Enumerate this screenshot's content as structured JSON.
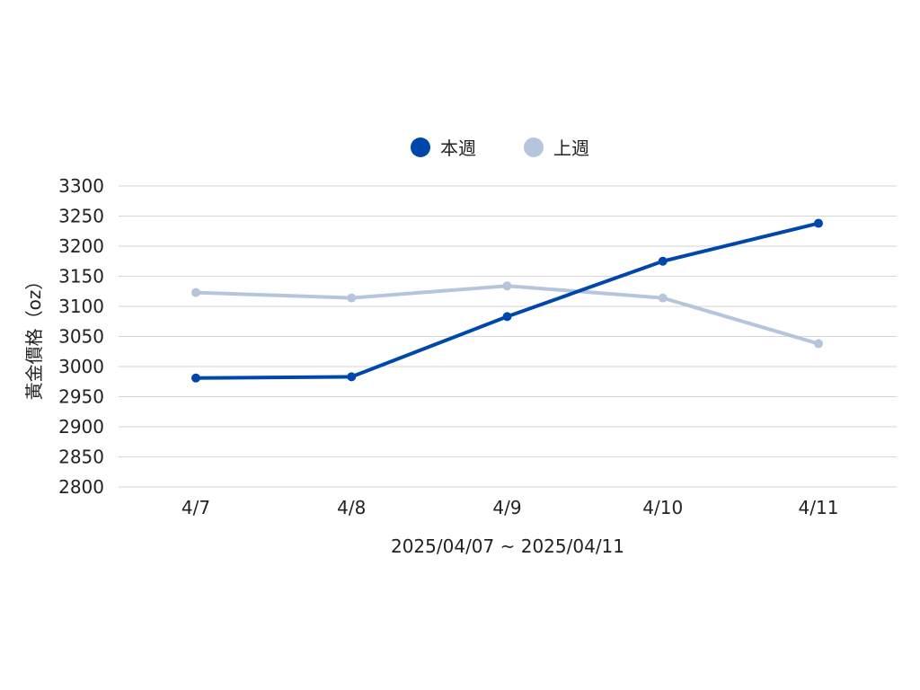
{
  "chart_data": {
    "type": "line",
    "categories": [
      "4/7",
      "4/8",
      "4/9",
      "4/10",
      "4/11"
    ],
    "series": [
      {
        "name": "本週",
        "color": "#0047ab",
        "values": [
          2981,
          2983,
          3083,
          3175,
          3238
        ]
      },
      {
        "name": "上週",
        "color": "#b5c6dc",
        "values": [
          3123,
          3114,
          3134,
          3114,
          3038
        ]
      }
    ],
    "title": "",
    "xlabel": "2025/04/07 ~ 2025/04/11",
    "ylabel": "黃金價格（oz）",
    "ylim": [
      2800,
      3300
    ],
    "yticks": [
      2800,
      2850,
      2900,
      2950,
      3000,
      3050,
      3100,
      3150,
      3200,
      3250,
      3300
    ],
    "grid": true,
    "legend_position": "top-center"
  }
}
